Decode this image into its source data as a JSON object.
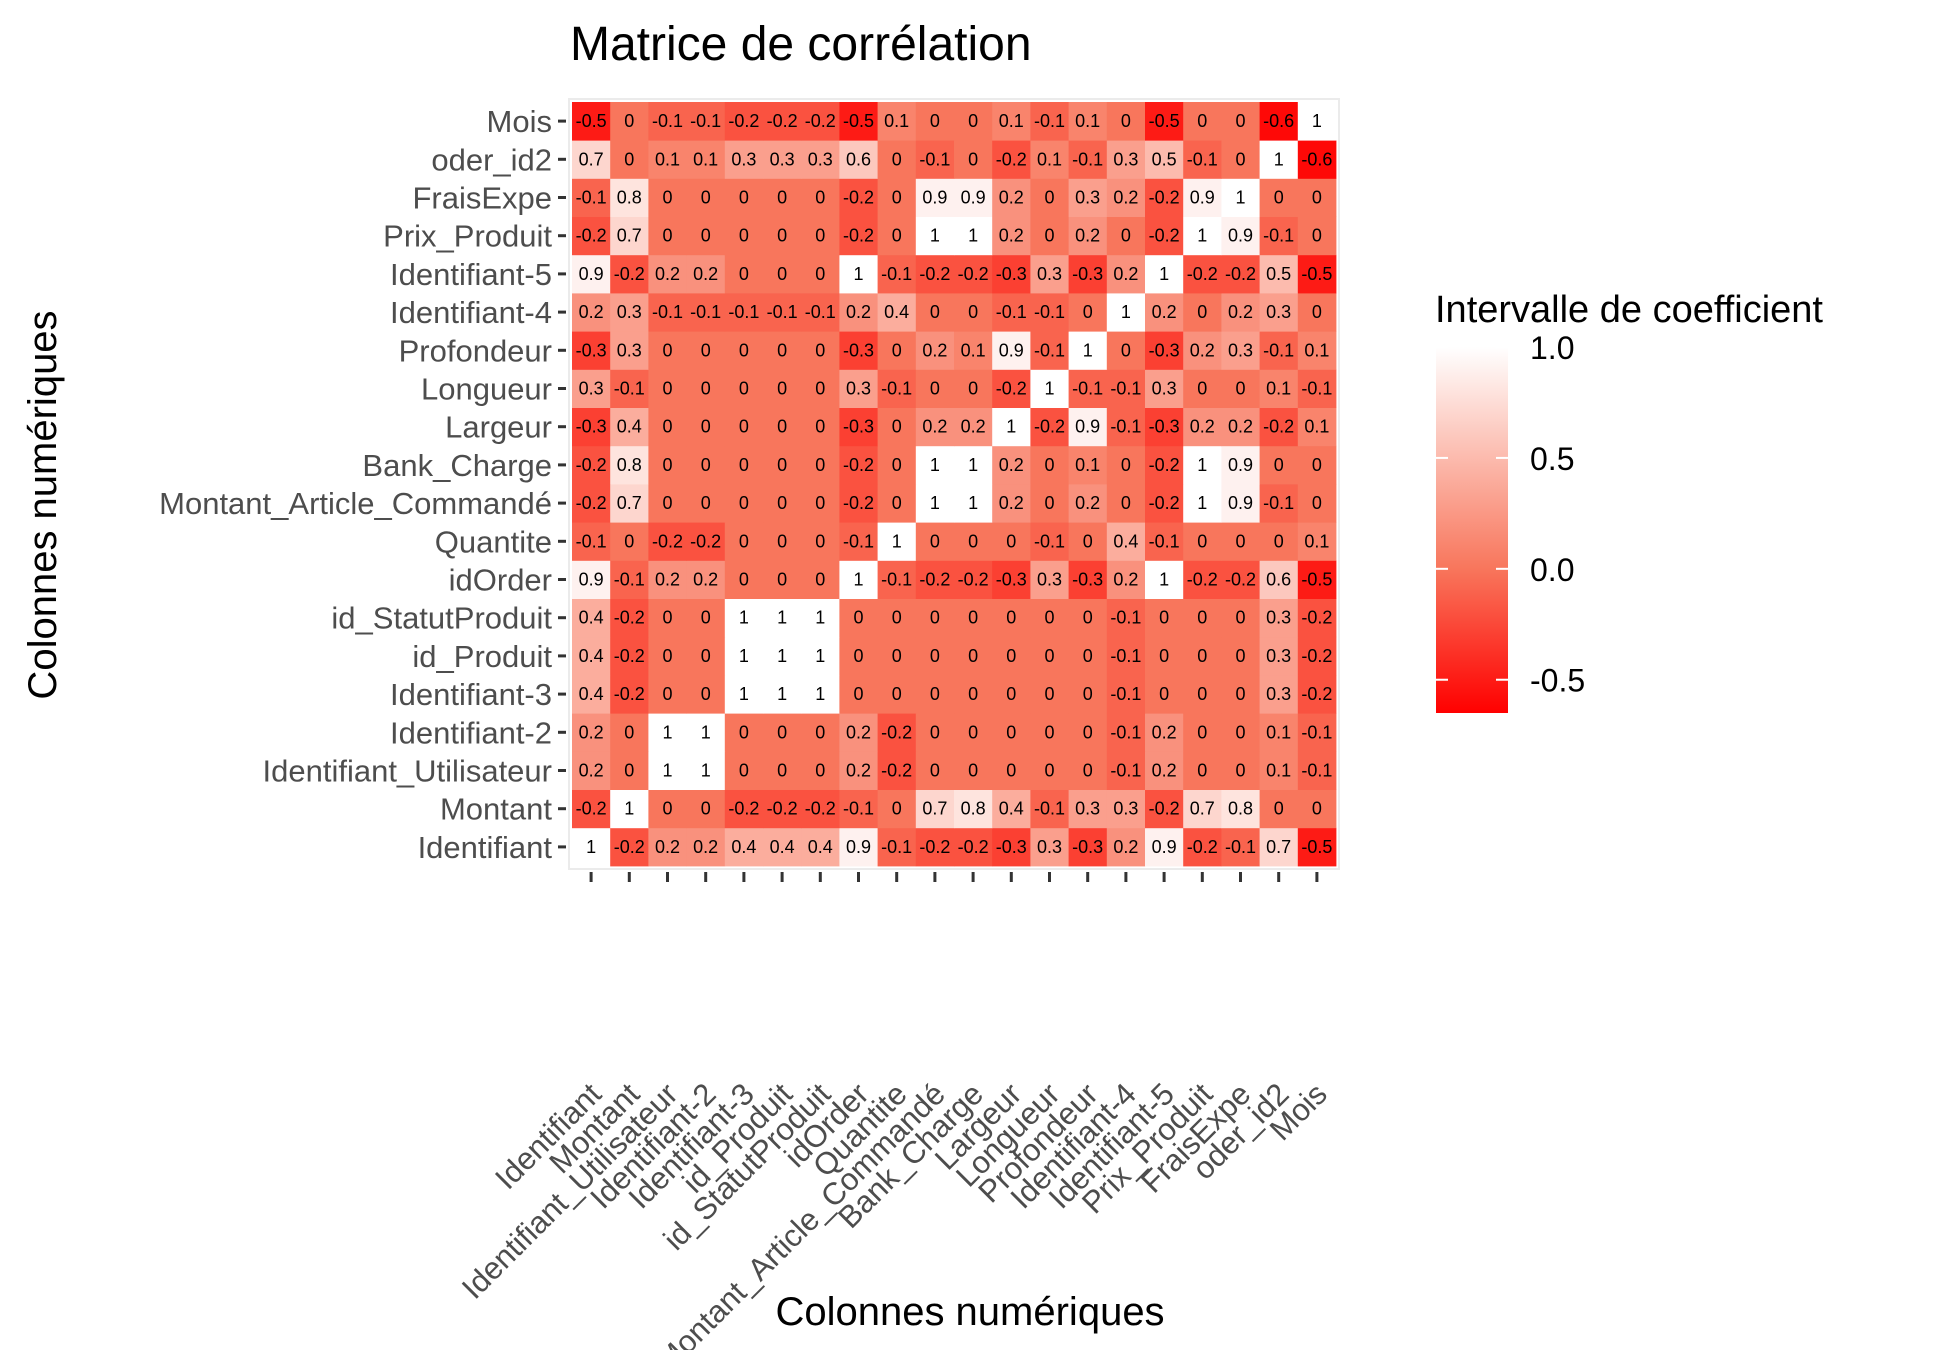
{
  "chart_data": {
    "type": "heatmap",
    "title": "Matrice de corrélation",
    "xlabel": "Colonnes numériques",
    "ylabel": "Colonnes numériques",
    "variables": [
      "Identifiant",
      "Montant",
      "Identifiant_Utilisateur",
      "Identifiant-2",
      "Identifiant-3",
      "id_Produit",
      "id_StatutProduit",
      "idOrder",
      "Quantite",
      "Montant_Article_Commandé",
      "Bank_Charge",
      "Largeur",
      "Longueur",
      "Profondeur",
      "Identifiant-4",
      "Identifiant-5",
      "Prix_Produit",
      "FraisExpe",
      "oder_id2",
      "Mois"
    ],
    "values": [
      [
        1,
        -0.2,
        0.2,
        0.2,
        0.4,
        0.4,
        0.4,
        0.9,
        -0.1,
        -0.2,
        -0.2,
        -0.3,
        0.3,
        -0.3,
        0.2,
        0.9,
        -0.2,
        -0.1,
        0.7,
        -0.5
      ],
      [
        -0.2,
        1,
        0,
        0,
        -0.2,
        -0.2,
        -0.2,
        -0.1,
        0,
        0.7,
        0.8,
        0.4,
        -0.1,
        0.3,
        0.3,
        -0.2,
        0.7,
        0.8,
        0,
        0
      ],
      [
        0.2,
        0,
        1,
        1,
        0,
        0,
        0,
        0.2,
        -0.2,
        0,
        0,
        0,
        0,
        0,
        -0.1,
        0.2,
        0,
        0,
        0.1,
        -0.1
      ],
      [
        0.2,
        0,
        1,
        1,
        0,
        0,
        0,
        0.2,
        -0.2,
        0,
        0,
        0,
        0,
        0,
        -0.1,
        0.2,
        0,
        0,
        0.1,
        -0.1
      ],
      [
        0.4,
        -0.2,
        0,
        0,
        1,
        1,
        1,
        0,
        0,
        0,
        0,
        0,
        0,
        0,
        -0.1,
        0,
        0,
        0,
        0.3,
        -0.2
      ],
      [
        0.4,
        -0.2,
        0,
        0,
        1,
        1,
        1,
        0,
        0,
        0,
        0,
        0,
        0,
        0,
        -0.1,
        0,
        0,
        0,
        0.3,
        -0.2
      ],
      [
        0.4,
        -0.2,
        0,
        0,
        1,
        1,
        1,
        0,
        0,
        0,
        0,
        0,
        0,
        0,
        -0.1,
        0,
        0,
        0,
        0.3,
        -0.2
      ],
      [
        0.9,
        -0.1,
        0.2,
        0.2,
        0,
        0,
        0,
        1,
        -0.1,
        -0.2,
        -0.2,
        -0.3,
        0.3,
        -0.3,
        0.2,
        1,
        -0.2,
        -0.2,
        0.6,
        -0.5
      ],
      [
        -0.1,
        0,
        -0.2,
        -0.2,
        0,
        0,
        0,
        -0.1,
        1,
        0,
        0,
        0,
        -0.1,
        0,
        0.4,
        -0.1,
        0,
        0,
        0,
        0.1
      ],
      [
        -0.2,
        0.7,
        0,
        0,
        0,
        0,
        0,
        -0.2,
        0,
        1,
        1,
        0.2,
        0,
        0.2,
        0,
        -0.2,
        1,
        0.9,
        -0.1,
        0
      ],
      [
        -0.2,
        0.8,
        0,
        0,
        0,
        0,
        0,
        -0.2,
        0,
        1,
        1,
        0.2,
        0,
        0.1,
        0,
        -0.2,
        1,
        0.9,
        0,
        0
      ],
      [
        -0.3,
        0.4,
        0,
        0,
        0,
        0,
        0,
        -0.3,
        0,
        0.2,
        0.2,
        1,
        -0.2,
        0.9,
        -0.1,
        -0.3,
        0.2,
        0.2,
        -0.2,
        0.1
      ],
      [
        0.3,
        -0.1,
        0,
        0,
        0,
        0,
        0,
        0.3,
        -0.1,
        0,
        0,
        -0.2,
        1,
        -0.1,
        -0.1,
        0.3,
        0,
        0,
        0.1,
        -0.1
      ],
      [
        -0.3,
        0.3,
        0,
        0,
        0,
        0,
        0,
        -0.3,
        0,
        0.2,
        0.1,
        0.9,
        -0.1,
        1,
        0,
        -0.3,
        0.2,
        0.3,
        -0.1,
        0.1
      ],
      [
        0.2,
        0.3,
        -0.1,
        -0.1,
        -0.1,
        -0.1,
        -0.1,
        0.2,
        0.4,
        0,
        0,
        -0.1,
        -0.1,
        0,
        1,
        0.2,
        0,
        0.2,
        0.3,
        0
      ],
      [
        0.9,
        -0.2,
        0.2,
        0.2,
        0,
        0,
        0,
        1,
        -0.1,
        -0.2,
        -0.2,
        -0.3,
        0.3,
        -0.3,
        0.2,
        1,
        -0.2,
        -0.2,
        0.5,
        -0.5
      ],
      [
        -0.2,
        0.7,
        0,
        0,
        0,
        0,
        0,
        -0.2,
        0,
        1,
        1,
        0.2,
        0,
        0.2,
        0,
        -0.2,
        1,
        0.9,
        -0.1,
        0
      ],
      [
        -0.1,
        0.8,
        0,
        0,
        0,
        0,
        0,
        -0.2,
        0,
        0.9,
        0.9,
        0.2,
        0,
        0.3,
        0.2,
        -0.2,
        0.9,
        1,
        0,
        0
      ],
      [
        0.7,
        0,
        0.1,
        0.1,
        0.3,
        0.3,
        0.3,
        0.6,
        0,
        -0.1,
        0,
        -0.2,
        0.1,
        -0.1,
        0.3,
        0.5,
        -0.1,
        0,
        1,
        -0.6
      ],
      [
        -0.5,
        0,
        -0.1,
        -0.1,
        -0.2,
        -0.2,
        -0.2,
        -0.5,
        0.1,
        0,
        0,
        0.1,
        -0.1,
        0.1,
        0,
        -0.5,
        0,
        0,
        -0.6,
        1
      ]
    ],
    "value_range": [
      -0.65,
      1
    ],
    "colors": {
      "low": "#ff0000",
      "mid": "#f8765c",
      "high": "#ffffff"
    },
    "legend": {
      "title": "Intervalle de coefficient",
      "ticks": [
        1.0,
        0.5,
        0.0,
        -0.5
      ],
      "tick_labels": [
        "1.0",
        "0.5",
        "0.0",
        "-0.5"
      ],
      "position": "right"
    },
    "grid": true
  }
}
